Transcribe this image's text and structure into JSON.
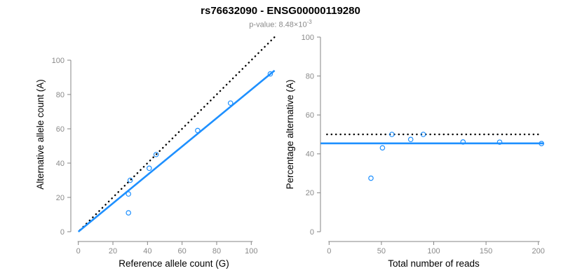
{
  "header": {
    "title": "rs76632090 - ENSG00000119280",
    "subtitle_main": "p-value: 8.48×10",
    "subtitle_exponent": "-3"
  },
  "colors": {
    "accent_blue": "#1E90FF",
    "reference_line_black": "#000000",
    "axis_gray": "#8A8A8A",
    "axis_line_gray": "#858585",
    "subtitle_gray": "#8A8A8A"
  },
  "chart_data": [
    {
      "type": "scatter",
      "panel": "left",
      "xlabel": "Reference allele count (G)",
      "ylabel": "Alternative allele count (A)",
      "xlim": [
        0,
        113.5
      ],
      "ylim": [
        0,
        113.5
      ],
      "xticks": [
        0,
        20,
        40,
        60,
        80,
        100
      ],
      "yticks": [
        0,
        20,
        40,
        60,
        80,
        100
      ],
      "grid": "off",
      "point_color": "#1E90FF",
      "points": [
        [
          29,
          11
        ],
        [
          29,
          22
        ],
        [
          30,
          30
        ],
        [
          41,
          37
        ],
        [
          45,
          45
        ],
        [
          69,
          59
        ],
        [
          88,
          75
        ],
        [
          111,
          92
        ]
      ],
      "lines": [
        {
          "name": "identity-line",
          "style": "dotted",
          "color": "#000000",
          "x1": 1,
          "y1": 1,
          "x2": 113.5,
          "y2": 113.5
        },
        {
          "name": "fit-line",
          "style": "solid",
          "color": "#1E90FF",
          "x1": 0,
          "y1": 0,
          "x2": 113.5,
          "y2": 94
        }
      ]
    },
    {
      "type": "scatter",
      "panel": "right",
      "xlabel": "Total number of reads",
      "ylabel": "Percentage alternative (A)",
      "xlim": [
        0,
        205
      ],
      "ylim": [
        0,
        100
      ],
      "xticks": [
        0,
        50,
        100,
        150,
        200
      ],
      "yticks": [
        0,
        20,
        40,
        60,
        80,
        100
      ],
      "grid": "off",
      "point_color": "#1E90FF",
      "points": [
        [
          40,
          27.5
        ],
        [
          51,
          43.1
        ],
        [
          60,
          50
        ],
        [
          78,
          47.4
        ],
        [
          90,
          50
        ],
        [
          128,
          46.1
        ],
        [
          163,
          46
        ],
        [
          203,
          45.3
        ]
      ],
      "lines": [
        {
          "name": "fifty-percent-line",
          "style": "dotted",
          "color": "#000000",
          "x1": -2,
          "y1": 50,
          "x2": 201.5,
          "y2": 50
        },
        {
          "name": "mean-percentage-line",
          "style": "solid",
          "color": "#1E90FF",
          "x1": -8,
          "y1": 45.4,
          "x2": 205,
          "y2": 45.4
        }
      ]
    }
  ]
}
